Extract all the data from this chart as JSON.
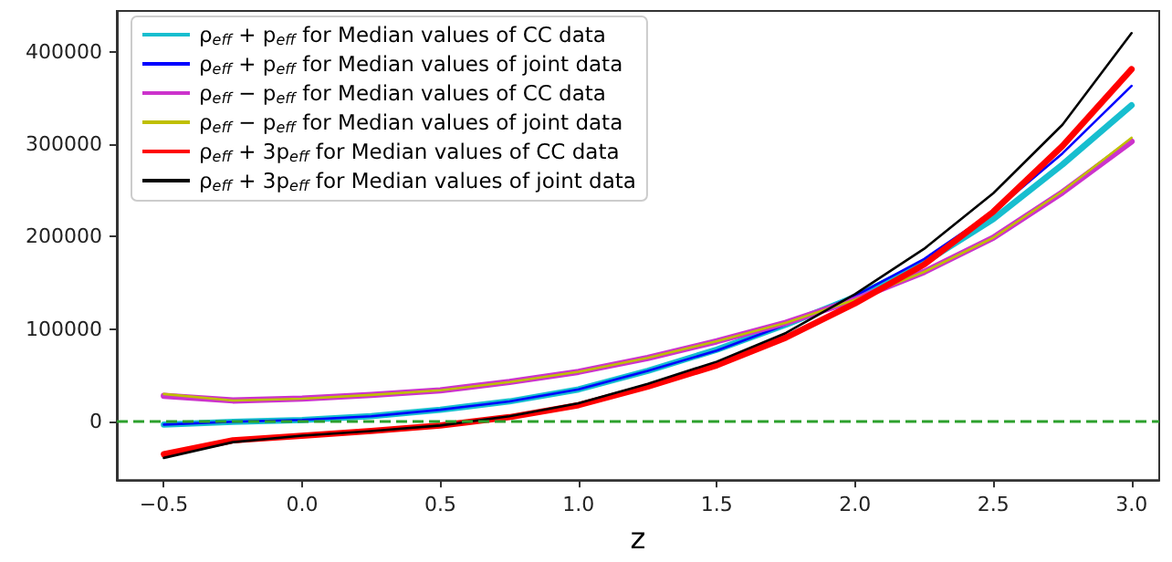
{
  "chart_data": {
    "type": "line",
    "xlabel": "z",
    "x": [
      -0.5,
      -0.25,
      0,
      0.25,
      0.5,
      0.75,
      1.0,
      1.25,
      1.5,
      1.75,
      2.0,
      2.25,
      2.5,
      2.75,
      3.0
    ],
    "series": [
      {
        "name": "ρ$_{eff}$ + p$_{eff}$ for Median values of CC data",
        "color": "#17becf",
        "values": [
          -3000,
          0,
          2000,
          6000,
          13000,
          22000,
          35000,
          55000,
          78000,
          105000,
          135000,
          172000,
          219000,
          278000,
          342000
        ]
      },
      {
        "name": "ρ$_{eff}$ + p$_{eff}$ for Median values of joint data",
        "color": "#0000ff",
        "values": [
          -3000,
          0,
          2000,
          6000,
          13000,
          22000,
          35000,
          55000,
          77000,
          105000,
          136000,
          176000,
          227000,
          290000,
          363000
        ]
      },
      {
        "name": "ρ$_{eff}$ − p$_{eff}$ for Median values of CC data",
        "color": "#cc33cc",
        "values": [
          28000,
          23000,
          25000,
          29000,
          34000,
          43000,
          54000,
          69000,
          87000,
          107000,
          132000,
          162000,
          199000,
          248000,
          303000
        ]
      },
      {
        "name": "ρ$_{eff}$ − p$_{eff}$ for Median values of joint data",
        "color": "#bfbf00",
        "values": [
          30000,
          23000,
          25000,
          29000,
          34000,
          43000,
          54000,
          69000,
          87000,
          107000,
          132000,
          162000,
          199000,
          249000,
          307000
        ]
      },
      {
        "name": "ρ$_{eff}$ + 3p$_{eff}$ for Median values of CC data",
        "color": "#ff0000",
        "values": [
          -35000,
          -20000,
          -15000,
          -10000,
          -4000,
          5000,
          18000,
          38000,
          61000,
          91000,
          128000,
          170000,
          227000,
          298000,
          381000
        ]
      },
      {
        "name": "ρ$_{eff}$ + 3p$_{eff}$ for Median values of joint data",
        "color": "#000000",
        "values": [
          -39000,
          -22000,
          -15000,
          -10000,
          -4000,
          6000,
          20000,
          41000,
          65000,
          96000,
          138000,
          187000,
          247000,
          321000,
          420000
        ]
      }
    ],
    "xlim": [
      -0.67,
      3.1
    ],
    "ylim": [
      -63000,
      444000
    ],
    "xticks": [
      {
        "value": -0.5,
        "label": "−0.5"
      },
      {
        "value": 0,
        "label": "0.0"
      },
      {
        "value": 0.5,
        "label": "0.5"
      },
      {
        "value": 1.0,
        "label": "1.0"
      },
      {
        "value": 1.5,
        "label": "1.5"
      },
      {
        "value": 2.0,
        "label": "2.0"
      },
      {
        "value": 2.5,
        "label": "2.5"
      },
      {
        "value": 3.0,
        "label": "3.0"
      }
    ],
    "yticks": [
      0,
      100000,
      200000,
      300000,
      400000
    ],
    "ref_lines": [
      {
        "axis": "y",
        "value": 0,
        "color": "#2ca02c",
        "line_style": "dashed"
      }
    ],
    "grid": false,
    "legend": "top left",
    "marker": "none",
    "line_style": "solid"
  }
}
